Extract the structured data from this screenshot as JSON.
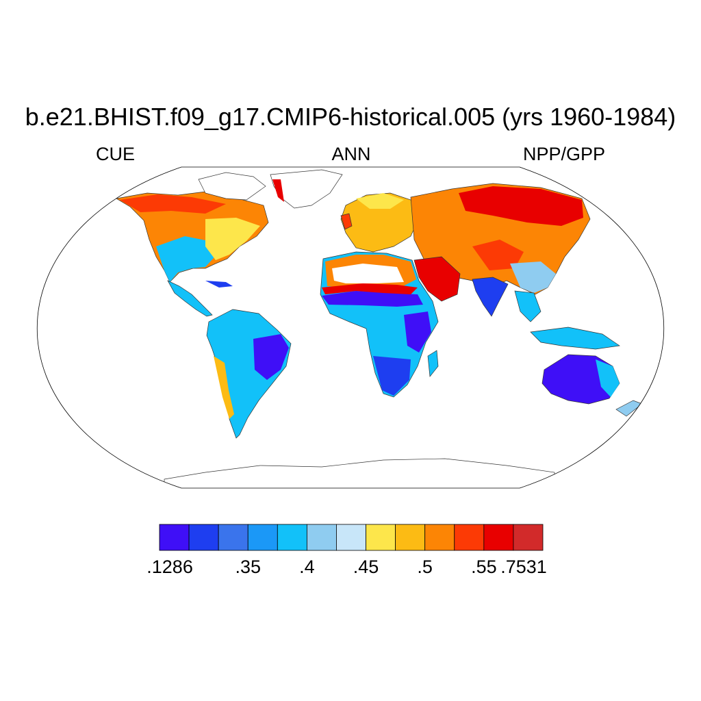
{
  "title": "b.e21.BHIST.f09_g17.CMIP6-historical.005 (yrs 1960-1984)",
  "subtitles": {
    "left": "CUE",
    "center": "ANN",
    "right": "NPP/GPP"
  },
  "colorbar": {
    "colors": [
      "#3f0ff7",
      "#1e3ef0",
      "#3a74ec",
      "#1b98f7",
      "#12c1f9",
      "#8fccf0",
      "#c8e6f9",
      "#fde64b",
      "#fcbb14",
      "#fc8505",
      "#fc3a05",
      "#e80000",
      "#d22a2a"
    ],
    "tick_labels": [
      ".1286",
      ".35",
      ".4",
      ".45",
      ".5",
      ".55",
      ".7531"
    ]
  },
  "map": {
    "projection": "Robinson",
    "variable": "NPP/GPP",
    "period": "ANN"
  }
}
